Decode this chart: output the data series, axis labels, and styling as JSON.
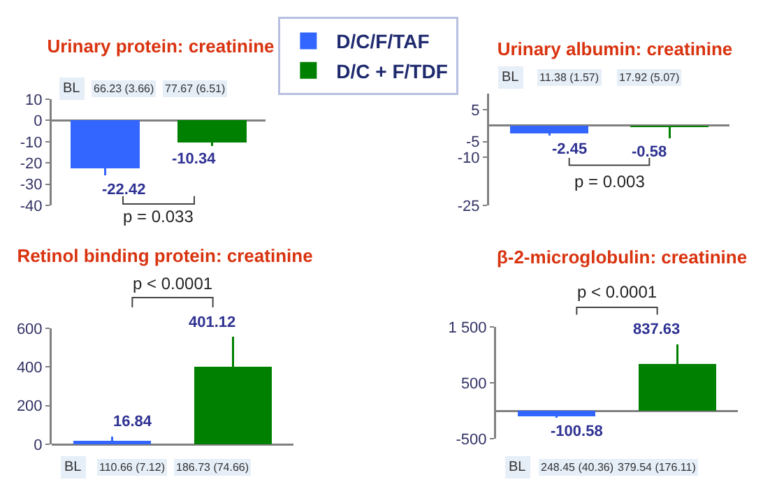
{
  "chart_data": [
    {
      "type": "bar",
      "title": "Urinary protein: creatinine",
      "categories": [
        null,
        null
      ],
      "series": [
        {
          "name": "D/C/F/TAF",
          "color": "#3366ff",
          "values": [
            -22.42,
            null
          ],
          "errors": [
            [
              -26,
              -22.42
            ],
            null
          ]
        },
        {
          "name": "D/C + F/TDF",
          "color": "#008000",
          "values": [
            null,
            -10.34
          ],
          "errors": [
            null,
            [
              -12,
              -10.34
            ]
          ]
        }
      ],
      "ylim": [
        -40,
        10
      ],
      "yticks": [
        10,
        0,
        -10,
        -20,
        -30,
        -40
      ],
      "data_labels": true,
      "legend": "top right",
      "annotations": [
        "BL",
        "66.23 (3.66)",
        "77.67 (6.51)",
        "p = 0.033"
      ]
    },
    {
      "type": "bar",
      "title": "Urinary albumin: creatinine",
      "categories": [
        null,
        null
      ],
      "series": [
        {
          "color": "#3366ff",
          "values": [
            -2.45,
            null
          ],
          "errors": [
            [
              -3.2,
              -2.45
            ],
            null
          ]
        },
        {
          "color": "#008000",
          "values": [
            null,
            -0.58
          ],
          "errors": [
            null,
            [
              -4,
              -0.58
            ]
          ]
        }
      ],
      "ylim": [
        -25,
        10
      ],
      "yticks": [
        5,
        -5,
        -10,
        -25
      ],
      "data_labels": true,
      "annotations": [
        "BL",
        "11.38 (1.57)",
        "17.92 (5.07)",
        "p = 0.003"
      ]
    },
    {
      "type": "bar",
      "title": "Retinol binding protein: creatinine",
      "categories": [
        null,
        null
      ],
      "series": [
        {
          "color": "#3366ff",
          "values": [
            16.84,
            null
          ],
          "errors": [
            [
              16.84,
              40
            ],
            null
          ]
        },
        {
          "color": "#008000",
          "values": [
            null,
            401.12
          ],
          "errors": [
            null,
            [
              401.12,
              555
            ]
          ]
        }
      ],
      "ylim": [
        0,
        600
      ],
      "yticks": [
        0,
        200,
        400,
        600
      ],
      "data_labels": true,
      "annotations": [
        "BL",
        "110.66 (7.12)",
        "186.73 (74.66)",
        "p < 0.0001"
      ]
    },
    {
      "type": "bar",
      "title": "β-2-microglobulin: creatinine",
      "categories": [
        null,
        null
      ],
      "series": [
        {
          "color": "#3366ff",
          "values": [
            -100.58,
            null
          ],
          "errors": [
            [
              -130,
              -100.58
            ],
            null
          ]
        },
        {
          "color": "#008000",
          "values": [
            null,
            837.63
          ],
          "errors": [
            null,
            [
              837.63,
              1190
            ]
          ]
        }
      ],
      "ylim": [
        -500,
        1500
      ],
      "yticks": [
        {
          "value": 1500,
          "label": "1 500"
        },
        500,
        -500
      ],
      "data_labels": true,
      "annotations": [
        "BL",
        "248.45 (40.36)",
        "379.54 (176.11)",
        "p < 0.0001"
      ]
    }
  ]
}
